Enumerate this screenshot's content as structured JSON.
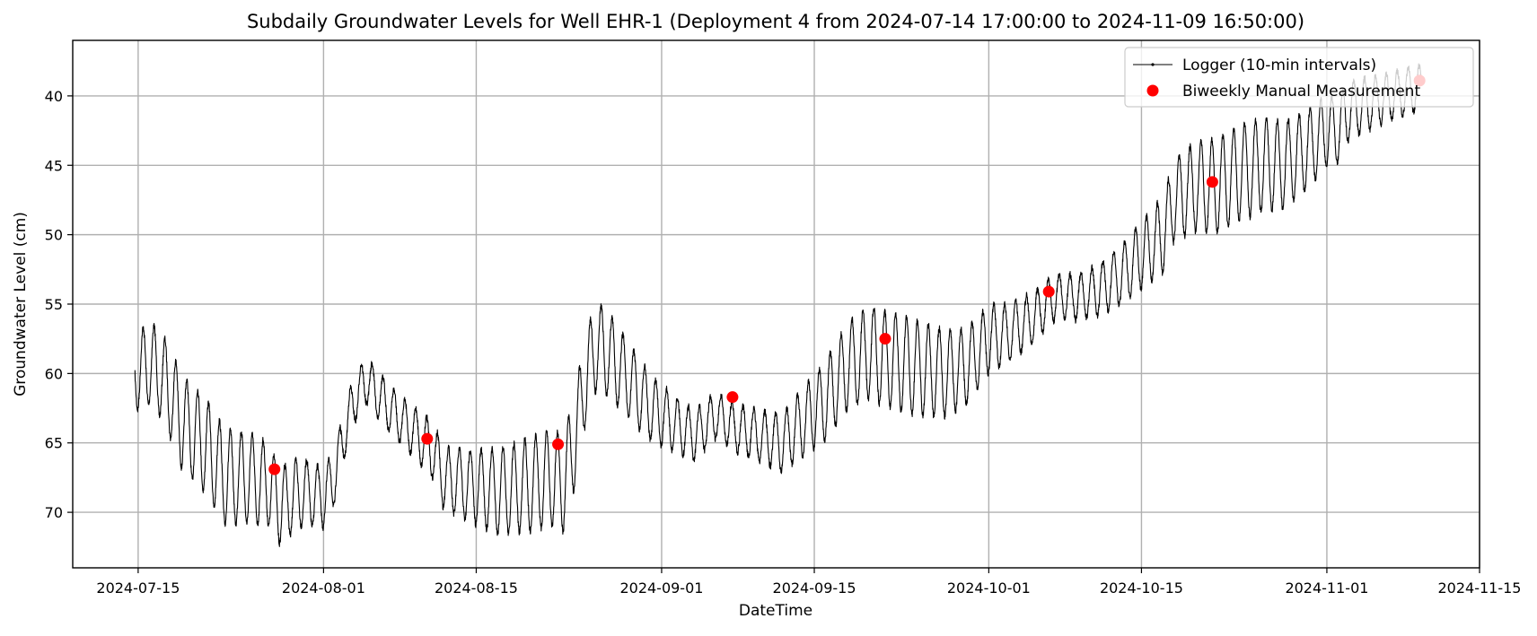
{
  "chart_data": {
    "type": "line",
    "title": "Subdaily Groundwater Levels for Well EHR-1 (Deployment 4 from 2024-07-14 17:00:00 to 2024-11-09 16:50:00)",
    "xlabel": "DateTime",
    "ylabel": "Groundwater Level (cm)",
    "x_range": [
      "2024-07-09",
      "2024-11-15"
    ],
    "ylim": [
      74,
      36
    ],
    "y_inverted": true,
    "grid": true,
    "legend_position": "upper right",
    "x_ticks": [
      "2024-07-15",
      "2024-08-01",
      "2024-08-15",
      "2024-09-01",
      "2024-09-15",
      "2024-10-01",
      "2024-10-15",
      "2024-11-01",
      "2024-11-15"
    ],
    "y_ticks": [
      40,
      45,
      50,
      55,
      60,
      65,
      70
    ],
    "series": [
      {
        "name": "Logger (10-min intervals)",
        "kind": "line",
        "color": "#000000",
        "diurnal_amplitude_cm": 3,
        "trend_points": [
          [
            "2024-07-14",
            60.5
          ],
          [
            "2024-07-15",
            59.8
          ],
          [
            "2024-07-16",
            59.3
          ],
          [
            "2024-07-17",
            60.0
          ],
          [
            "2024-07-18",
            61.5
          ],
          [
            "2024-07-19",
            63.5
          ],
          [
            "2024-07-21",
            65.0
          ],
          [
            "2024-07-23",
            67.5
          ],
          [
            "2024-07-25",
            67.5
          ],
          [
            "2024-07-27",
            68.0
          ],
          [
            "2024-07-28",
            69.5
          ],
          [
            "2024-07-30",
            68.5
          ],
          [
            "2024-08-01",
            69.0
          ],
          [
            "2024-08-02",
            67.5
          ],
          [
            "2024-08-03",
            64.0
          ],
          [
            "2024-08-04",
            61.5
          ],
          [
            "2024-08-05",
            60.5
          ],
          [
            "2024-08-07",
            62.5
          ],
          [
            "2024-08-09",
            64.0
          ],
          [
            "2024-08-11",
            65.5
          ],
          [
            "2024-08-12",
            67.5
          ],
          [
            "2024-08-14",
            68.0
          ],
          [
            "2024-08-17",
            68.5
          ],
          [
            "2024-08-20",
            68.0
          ],
          [
            "2024-08-22",
            67.5
          ],
          [
            "2024-08-23",
            68.0
          ],
          [
            "2024-08-24",
            65.0
          ],
          [
            "2024-08-25",
            60.5
          ],
          [
            "2024-08-26",
            58.0
          ],
          [
            "2024-08-27",
            58.5
          ],
          [
            "2024-08-29",
            60.5
          ],
          [
            "2024-08-31",
            62.5
          ],
          [
            "2024-09-02",
            63.5
          ],
          [
            "2024-09-04",
            64.5
          ],
          [
            "2024-09-06",
            63.0
          ],
          [
            "2024-09-08",
            64.0
          ],
          [
            "2024-09-10",
            64.5
          ],
          [
            "2024-09-12",
            65.0
          ],
          [
            "2024-09-14",
            63.5
          ],
          [
            "2024-09-16",
            62.0
          ],
          [
            "2024-09-18",
            59.5
          ],
          [
            "2024-09-20",
            58.5
          ],
          [
            "2024-09-22",
            59.0
          ],
          [
            "2024-09-24",
            59.5
          ],
          [
            "2024-09-27",
            60.0
          ],
          [
            "2024-09-29",
            59.5
          ],
          [
            "2024-10-01",
            57.5
          ],
          [
            "2024-10-03",
            57.0
          ],
          [
            "2024-10-05",
            56.0
          ],
          [
            "2024-10-07",
            54.5
          ],
          [
            "2024-10-09",
            54.5
          ],
          [
            "2024-10-11",
            54.0
          ],
          [
            "2024-10-13",
            53.0
          ],
          [
            "2024-10-15",
            51.5
          ],
          [
            "2024-10-17",
            50.0
          ],
          [
            "2024-10-18",
            47.5
          ],
          [
            "2024-10-20",
            46.5
          ],
          [
            "2024-10-22",
            46.5
          ],
          [
            "2024-10-24",
            45.5
          ],
          [
            "2024-10-26",
            45.0
          ],
          [
            "2024-10-28",
            45.0
          ],
          [
            "2024-10-30",
            44.0
          ],
          [
            "2024-11-01",
            42.5
          ],
          [
            "2024-11-02",
            42.5
          ],
          [
            "2024-11-03",
            41.0
          ],
          [
            "2024-11-05",
            40.5
          ],
          [
            "2024-11-07",
            40.0
          ],
          [
            "2024-11-09",
            39.5
          ]
        ]
      },
      {
        "name": "Biweekly Manual Measurement",
        "kind": "scatter",
        "color": "#ff0000",
        "x": [
          "2024-07-27",
          "2024-08-10",
          "2024-08-22",
          "2024-09-07",
          "2024-09-21",
          "2024-10-06",
          "2024-10-21",
          "2024-11-09"
        ],
        "y": [
          66.9,
          64.7,
          65.1,
          61.7,
          57.5,
          54.1,
          46.2,
          38.9
        ]
      }
    ]
  }
}
